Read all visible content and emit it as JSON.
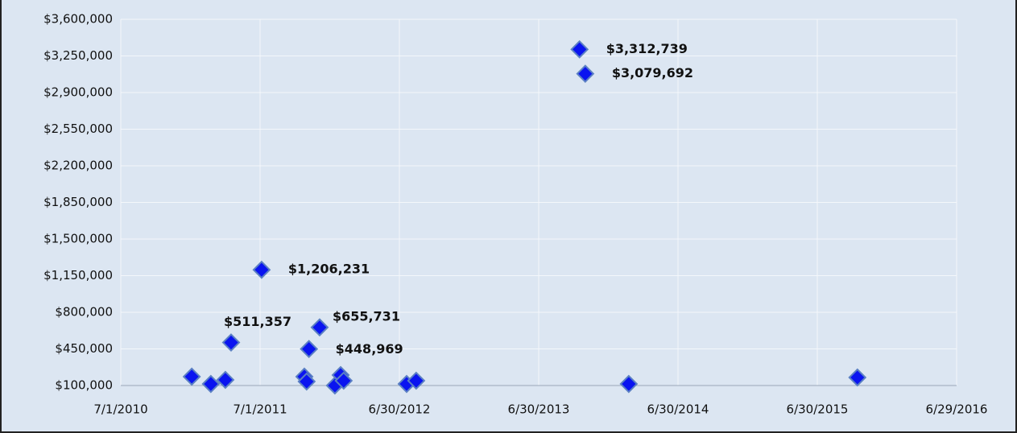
{
  "chart_data": {
    "type": "scatter",
    "color": "#0a14f0",
    "x": [
      40546,
      40596,
      40634,
      40649,
      40729,
      40841,
      40847,
      40853,
      40881,
      40921,
      40936,
      40944,
      41109,
      41134,
      41562,
      41577,
      41691,
      42290
    ],
    "values": [
      185000,
      115000,
      154000,
      511357,
      1206231,
      185000,
      138000,
      448969,
      655731,
      100000,
      200000,
      146000,
      115000,
      146000,
      3312739,
      3079692,
      115000,
      177000
    ],
    "value_labels": [
      null,
      null,
      null,
      "$511,357",
      "$1,206,231",
      null,
      null,
      "$448,969",
      "$655,731",
      null,
      null,
      null,
      null,
      null,
      "$3,312,739",
      "$3,079,692",
      null,
      null
    ],
    "xlim": [
      40360,
      42550
    ],
    "xticks": [
      {
        "value": 40360,
        "label": "7/1/2010"
      },
      {
        "value": 40725,
        "label": "7/1/2011"
      },
      {
        "value": 41090,
        "label": "6/30/2012"
      },
      {
        "value": 41455,
        "label": "6/30/2013"
      },
      {
        "value": 41820,
        "label": "6/30/2014"
      },
      {
        "value": 42185,
        "label": "6/30/2015"
      },
      {
        "value": 42550,
        "label": "6/29/2016"
      }
    ],
    "ylim": [
      100000,
      3600000
    ],
    "yticks": [
      {
        "value": 100000,
        "label": "$100,000"
      },
      {
        "value": 450000,
        "label": "$450,000"
      },
      {
        "value": 800000,
        "label": "$800,000"
      },
      {
        "value": 1150000,
        "label": "$1,150,000"
      },
      {
        "value": 1500000,
        "label": "$1,500,000"
      },
      {
        "value": 1850000,
        "label": "$1,850,000"
      },
      {
        "value": 2200000,
        "label": "$2,200,000"
      },
      {
        "value": 2550000,
        "label": "$2,550,000"
      },
      {
        "value": 2900000,
        "label": "$2,900,000"
      },
      {
        "value": 3250000,
        "label": "$3,250,000"
      },
      {
        "value": 3600000,
        "label": "$3,600,000"
      }
    ],
    "grid": true
  }
}
